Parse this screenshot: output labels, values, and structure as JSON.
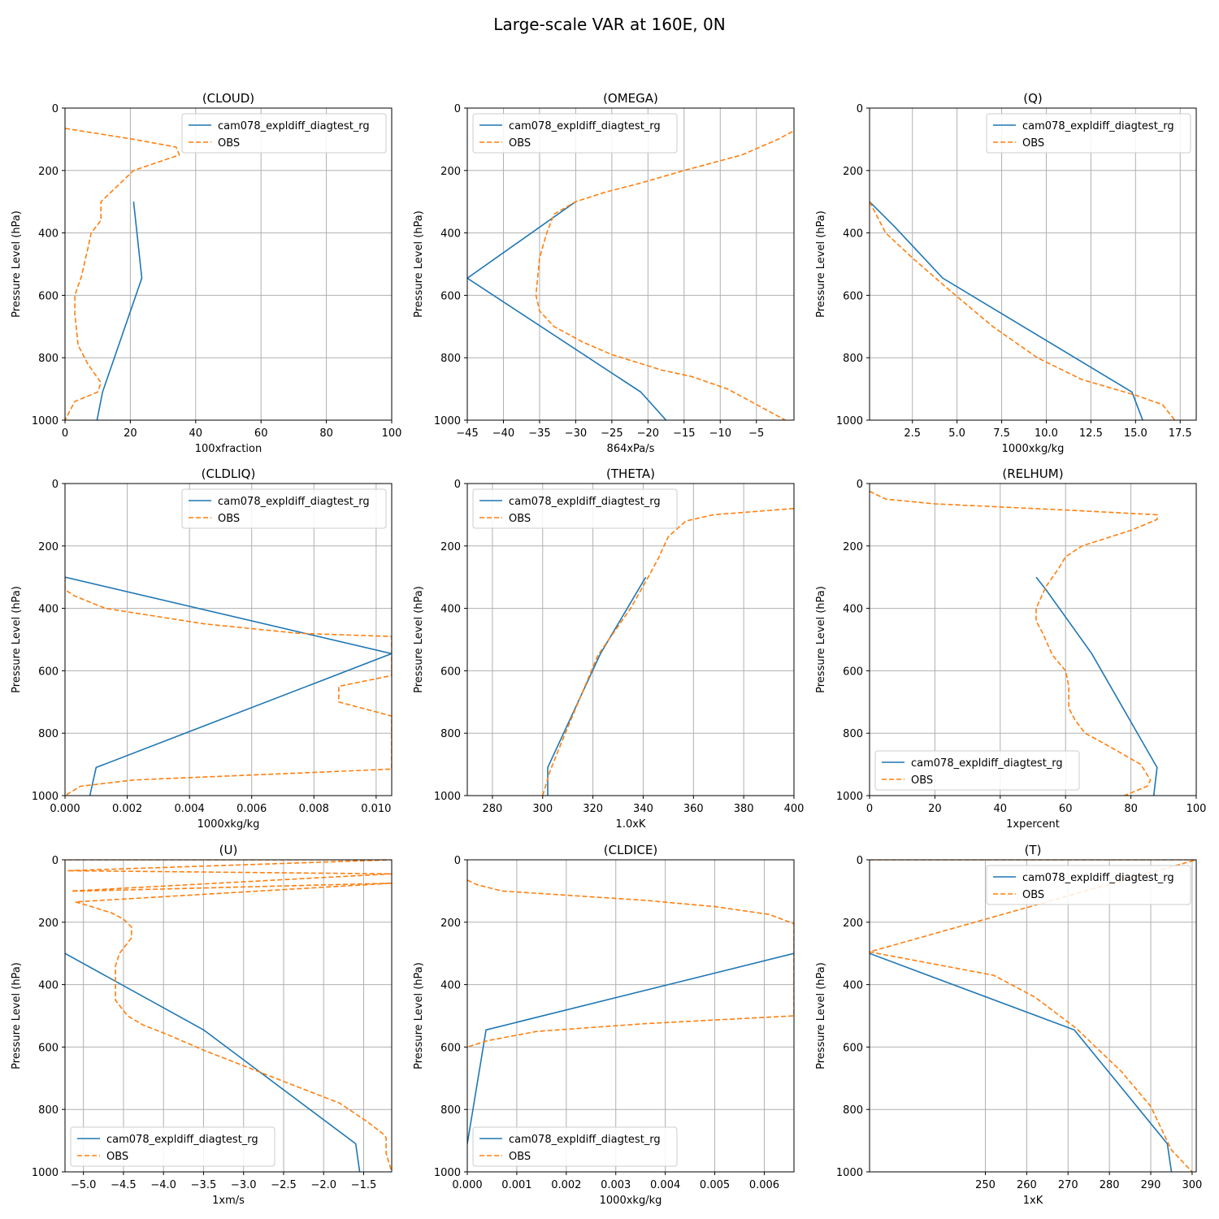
{
  "suptitle": "Large-scale VAR at 160E, 0N",
  "colors": {
    "model": "#1f77b4",
    "obs": "#ff7f0e"
  },
  "chart_data": [
    {
      "type": "line",
      "title": "(CLOUD)",
      "xlabel": "100xfraction",
      "ylabel": "Pressure Level (hPa)",
      "xlim": [
        0,
        100
      ],
      "ylim": [
        1000,
        0
      ],
      "xticks": [
        0,
        20,
        40,
        60,
        80,
        100
      ],
      "xtick_labels": [
        "0",
        "20",
        "40",
        "60",
        "80",
        "100"
      ],
      "yticks": [
        0,
        200,
        400,
        600,
        800,
        1000
      ],
      "ytick_labels": [
        "0",
        "200",
        "400",
        "600",
        "800",
        "1000"
      ],
      "grid": true,
      "legend": "upper right",
      "series": [
        {
          "name": "cam078_expldiff_diagtest_rg",
          "style": "solid",
          "x": [
            21,
            23.5,
            11.5,
            9.8
          ],
          "y": [
            300,
            545,
            910,
            1000
          ]
        },
        {
          "name": "OBS",
          "style": "dashed",
          "x": [
            0,
            21,
            34,
            35,
            28,
            21,
            17,
            11,
            11,
            8,
            7,
            5,
            3,
            3,
            4,
            7,
            11,
            10,
            3,
            0
          ],
          "y": [
            65,
            100,
            125,
            150,
            175,
            200,
            240,
            300,
            360,
            400,
            450,
            540,
            600,
            660,
            760,
            820,
            880,
            910,
            940,
            1000
          ]
        }
      ]
    },
    {
      "type": "line",
      "title": "(OMEGA)",
      "xlabel": "864xPa/s",
      "ylabel": "Pressure Level (hPa)",
      "xlim": [
        -45,
        0.2
      ],
      "ylim": [
        1000,
        0
      ],
      "xticks": [
        -45,
        -40,
        -35,
        -30,
        -25,
        -20,
        -15,
        -10,
        -5
      ],
      "xtick_labels": [
        "−45",
        "−40",
        "−35",
        "−30",
        "−25",
        "−20",
        "−15",
        "−10",
        "−5"
      ],
      "yticks": [
        0,
        200,
        400,
        600,
        800,
        1000
      ],
      "ytick_labels": [
        "0",
        "200",
        "400",
        "600",
        "800",
        "1000"
      ],
      "grid": true,
      "legend": "upper left",
      "series": [
        {
          "name": "cam078_expldiff_diagtest_rg",
          "style": "solid",
          "x": [
            -30,
            -45,
            -21,
            -17.5
          ],
          "y": [
            300,
            545,
            910,
            1000
          ]
        },
        {
          "name": "OBS",
          "style": "dashed",
          "x": [
            0,
            -2,
            -7,
            -15,
            -21,
            -26,
            -30,
            -33,
            -34,
            -35,
            -35.5,
            -35,
            -33,
            -29,
            -25,
            -18,
            -14,
            -9,
            -5,
            -1
          ],
          "y": [
            75,
            100,
            150,
            200,
            240,
            270,
            300,
            340,
            400,
            480,
            600,
            650,
            700,
            750,
            790,
            840,
            860,
            900,
            950,
            1000
          ]
        }
      ]
    },
    {
      "type": "line",
      "title": "(Q)",
      "xlabel": "1000xkg/kg",
      "ylabel": "Pressure Level (hPa)",
      "xlim": [
        0.1,
        18.4
      ],
      "ylim": [
        1000,
        0
      ],
      "xticks": [
        2.5,
        5,
        7.5,
        10,
        12.5,
        15,
        17.5
      ],
      "xtick_labels": [
        "2.5",
        "5.0",
        "7.5",
        "10.0",
        "12.5",
        "15.0",
        "17.5"
      ],
      "yticks": [
        0,
        200,
        400,
        600,
        800,
        1000
      ],
      "ytick_labels": [
        "0",
        "200",
        "400",
        "600",
        "800",
        "1000"
      ],
      "grid": true,
      "legend": "upper right",
      "series": [
        {
          "name": "cam078_expldiff_diagtest_rg",
          "style": "solid",
          "x": [
            0.1,
            1.5,
            4.2,
            14.8,
            15.4
          ],
          "y": [
            300,
            380,
            545,
            910,
            1000
          ]
        },
        {
          "name": "OBS",
          "style": "dashed",
          "x": [
            0.1,
            1,
            2.5,
            4.5,
            7,
            9.5,
            12,
            15,
            16.5,
            17.2
          ],
          "y": [
            300,
            400,
            480,
            580,
            700,
            800,
            870,
            920,
            950,
            1000
          ]
        }
      ]
    },
    {
      "type": "line",
      "title": "(CLDLIQ)",
      "xlabel": "1000xkg/kg",
      "ylabel": "Pressure Level (hPa)",
      "xlim": [
        0,
        0.0105
      ],
      "ylim": [
        1000,
        0
      ],
      "xticks": [
        0,
        0.002,
        0.004,
        0.006,
        0.008,
        0.01
      ],
      "xtick_labels": [
        "0.000",
        "0.002",
        "0.004",
        "0.006",
        "0.008",
        "0.010"
      ],
      "yticks": [
        0,
        200,
        400,
        600,
        800,
        1000
      ],
      "ytick_labels": [
        "0",
        "200",
        "400",
        "600",
        "800",
        "1000"
      ],
      "grid": true,
      "legend": "upper right",
      "series": [
        {
          "name": "cam078_expldiff_diagtest_rg",
          "style": "solid",
          "x": [
            0,
            0.0105,
            0.001,
            0.0008
          ],
          "y": [
            300,
            545,
            910,
            1000
          ]
        },
        {
          "name": "OBS",
          "style": "dashed",
          "x": [
            0,
            0,
            0.0003,
            0.0013,
            0.0045,
            0.0075,
            0.0105,
            0.0105,
            0.0105,
            0.0088,
            0.0088,
            0.0105,
            0.0105,
            0.0105,
            0.0022,
            0.0005,
            0
          ],
          "y": [
            300,
            340,
            360,
            400,
            450,
            480,
            490,
            560,
            615,
            650,
            700,
            745,
            800,
            915,
            950,
            970,
            1000
          ]
        }
      ]
    },
    {
      "type": "line",
      "title": "(THETA)",
      "xlabel": "1.0xK",
      "ylabel": "Pressure Level (hPa)",
      "xlim": [
        270,
        400
      ],
      "ylim": [
        1000,
        0
      ],
      "xticks": [
        280,
        300,
        320,
        340,
        360,
        380,
        400
      ],
      "xtick_labels": [
        "280",
        "300",
        "320",
        "340",
        "360",
        "380",
        "400"
      ],
      "yticks": [
        0,
        200,
        400,
        600,
        800,
        1000
      ],
      "ytick_labels": [
        "0",
        "200",
        "400",
        "600",
        "800",
        "1000"
      ],
      "grid": true,
      "legend": "upper left",
      "series": [
        {
          "name": "cam078_expldiff_diagtest_rg",
          "style": "solid",
          "x": [
            341,
            323,
            302,
            302
          ],
          "y": [
            300,
            545,
            910,
            1000
          ]
        },
        {
          "name": "OBS",
          "style": "dashed",
          "x": [
            400,
            368,
            357,
            350,
            346,
            342,
            335,
            322,
            309,
            303,
            300
          ],
          "y": [
            80,
            100,
            120,
            170,
            240,
            300,
            400,
            550,
            800,
            920,
            1000
          ]
        }
      ]
    },
    {
      "type": "line",
      "title": "(RELHUM)",
      "xlabel": "1xpercent",
      "ylabel": "Pressure Level (hPa)",
      "xlim": [
        0,
        100
      ],
      "ylim": [
        1000,
        0
      ],
      "xticks": [
        0,
        20,
        40,
        60,
        80,
        100
      ],
      "xtick_labels": [
        "0",
        "20",
        "40",
        "60",
        "80",
        "100"
      ],
      "yticks": [
        0,
        200,
        400,
        600,
        800,
        1000
      ],
      "ytick_labels": [
        "0",
        "200",
        "400",
        "600",
        "800",
        "1000"
      ],
      "grid": true,
      "legend": "lower left",
      "series": [
        {
          "name": "cam078_expldiff_diagtest_rg",
          "style": "solid",
          "x": [
            51,
            54,
            68,
            88,
            87
          ],
          "y": [
            300,
            340,
            545,
            910,
            1000
          ]
        },
        {
          "name": "OBS",
          "style": "dashed",
          "x": [
            0,
            5,
            20,
            60,
            88,
            88,
            80,
            65,
            60,
            58,
            54,
            51,
            51,
            53,
            56,
            60,
            61,
            61,
            63,
            66,
            73,
            83,
            86,
            85,
            78
          ],
          "y": [
            25,
            50,
            65,
            85,
            100,
            115,
            150,
            200,
            235,
            270,
            330,
            400,
            440,
            480,
            550,
            600,
            650,
            720,
            760,
            800,
            840,
            900,
            950,
            970,
            1000
          ]
        }
      ]
    },
    {
      "type": "line",
      "title": "(U)",
      "xlabel": "1xm/s",
      "ylabel": "Pressure Level (hPa)",
      "xlim": [
        -5.23,
        -1.15
      ],
      "ylim": [
        1000,
        0
      ],
      "xticks": [
        -5,
        -4.5,
        -4,
        -3.5,
        -3,
        -2.5,
        -2,
        -1.5
      ],
      "xtick_labels": [
        "−5.0",
        "−4.5",
        "−4.0",
        "−3.5",
        "−3.0",
        "−2.5",
        "−2.0",
        "−1.5"
      ],
      "yticks": [
        0,
        200,
        400,
        600,
        800,
        1000
      ],
      "ytick_labels": [
        "0",
        "200",
        "400",
        "600",
        "800",
        "1000"
      ],
      "grid": true,
      "legend": "lower left",
      "series": [
        {
          "name": "cam078_expldiff_diagtest_rg",
          "style": "solid",
          "x": [
            -5.23,
            -3.5,
            -1.6,
            -1.55
          ],
          "y": [
            300,
            545,
            910,
            1000
          ]
        },
        {
          "name": "OBS",
          "style": "dashed",
          "x": [
            -5.2,
            -1.15,
            -5.2,
            -1.15,
            -5.15,
            -5.0,
            -1.15,
            -5.1,
            -4.9,
            -4.65,
            -4.5,
            -4.4,
            -4.4,
            -4.55,
            -4.6,
            -4.6,
            -4.45,
            -4.25,
            -3.95,
            -3.5,
            -2.7,
            -1.8,
            -1.45,
            -1.25,
            -1.22,
            -1.22,
            -1.15
          ],
          "y": [
            0,
            0,
            35,
            45,
            100,
            100,
            75,
            135,
            150,
            170,
            190,
            215,
            250,
            300,
            340,
            450,
            500,
            530,
            560,
            610,
            690,
            780,
            840,
            880,
            890,
            940,
            1000
          ]
        }
      ]
    },
    {
      "type": "line",
      "title": "(CLDICE)",
      "xlabel": "1000xkg/kg",
      "ylabel": "Pressure Level (hPa)",
      "xlim": [
        0,
        0.0066
      ],
      "ylim": [
        1000,
        0
      ],
      "xticks": [
        0,
        0.001,
        0.002,
        0.003,
        0.004,
        0.005,
        0.006
      ],
      "xtick_labels": [
        "0.000",
        "0.001",
        "0.002",
        "0.003",
        "0.004",
        "0.005",
        "0.006"
      ],
      "yticks": [
        0,
        200,
        400,
        600,
        800,
        1000
      ],
      "ytick_labels": [
        "0",
        "200",
        "400",
        "600",
        "800",
        "1000"
      ],
      "grid": true,
      "legend": "lower left",
      "series": [
        {
          "name": "cam078_expldiff_diagtest_rg",
          "style": "solid",
          "x": [
            0.0066,
            0.00038,
            0
          ],
          "y": [
            300,
            545,
            910
          ]
        },
        {
          "name": "OBS",
          "style": "dashed",
          "x": [
            0,
            0.0002,
            0.0007,
            0.0036,
            0.005,
            0.0061,
            0.0066,
            0.0066,
            0.0066,
            0.0036,
            0.0014,
            0.0004,
            0
          ],
          "y": [
            65,
            80,
            100,
            130,
            150,
            175,
            205,
            300,
            500,
            525,
            550,
            580,
            600
          ]
        }
      ]
    },
    {
      "type": "line",
      "title": "(T)",
      "xlabel": "1xK",
      "ylabel": "Pressure Level (hPa)",
      "xlim": [
        222,
        301
      ],
      "ylim": [
        1000,
        0
      ],
      "xticks": [
        250,
        260,
        270,
        280,
        290,
        300
      ],
      "xtick_labels": [
        "250",
        "260",
        "270",
        "280",
        "290",
        "300"
      ],
      "yticks": [
        0,
        200,
        400,
        600,
        800,
        1000
      ],
      "ytick_labels": [
        "0",
        "200",
        "400",
        "600",
        "800",
        "1000"
      ],
      "grid": true,
      "legend": "upper right",
      "series": [
        {
          "name": "cam078_expldiff_diagtest_rg",
          "style": "solid",
          "x": [
            222,
            271.5,
            294,
            295
          ],
          "y": [
            300,
            545,
            910,
            1000
          ]
        },
        {
          "name": "OBS",
          "style": "dashed",
          "x": [
            222,
            301,
            222,
            252,
            262,
            272,
            283,
            290,
            295,
            300
          ],
          "y": [
            0,
            0,
            295,
            370,
            440,
            540,
            680,
            790,
            930,
            1000
          ]
        }
      ]
    }
  ]
}
